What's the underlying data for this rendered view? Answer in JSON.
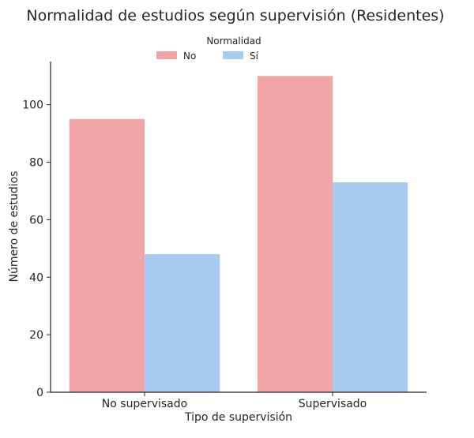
{
  "chart_data": {
    "type": "bar",
    "title": "Normalidad de estudios según supervisión (Residentes)",
    "xlabel": "Tipo de supervisión",
    "ylabel": "Número de estudios",
    "categories": [
      "No supervisado",
      "Supervisado"
    ],
    "series": [
      {
        "name": "No",
        "values": [
          95,
          110
        ],
        "color": "#f2a5a6"
      },
      {
        "name": "Sí",
        "values": [
          48,
          73
        ],
        "color": "#a7cbf1"
      }
    ],
    "ylim": [
      0,
      115
    ],
    "yticks": [
      0,
      20,
      40,
      60,
      80,
      100
    ],
    "legend": {
      "title": "Normalidad",
      "placement": "top-center"
    },
    "grid": false
  }
}
